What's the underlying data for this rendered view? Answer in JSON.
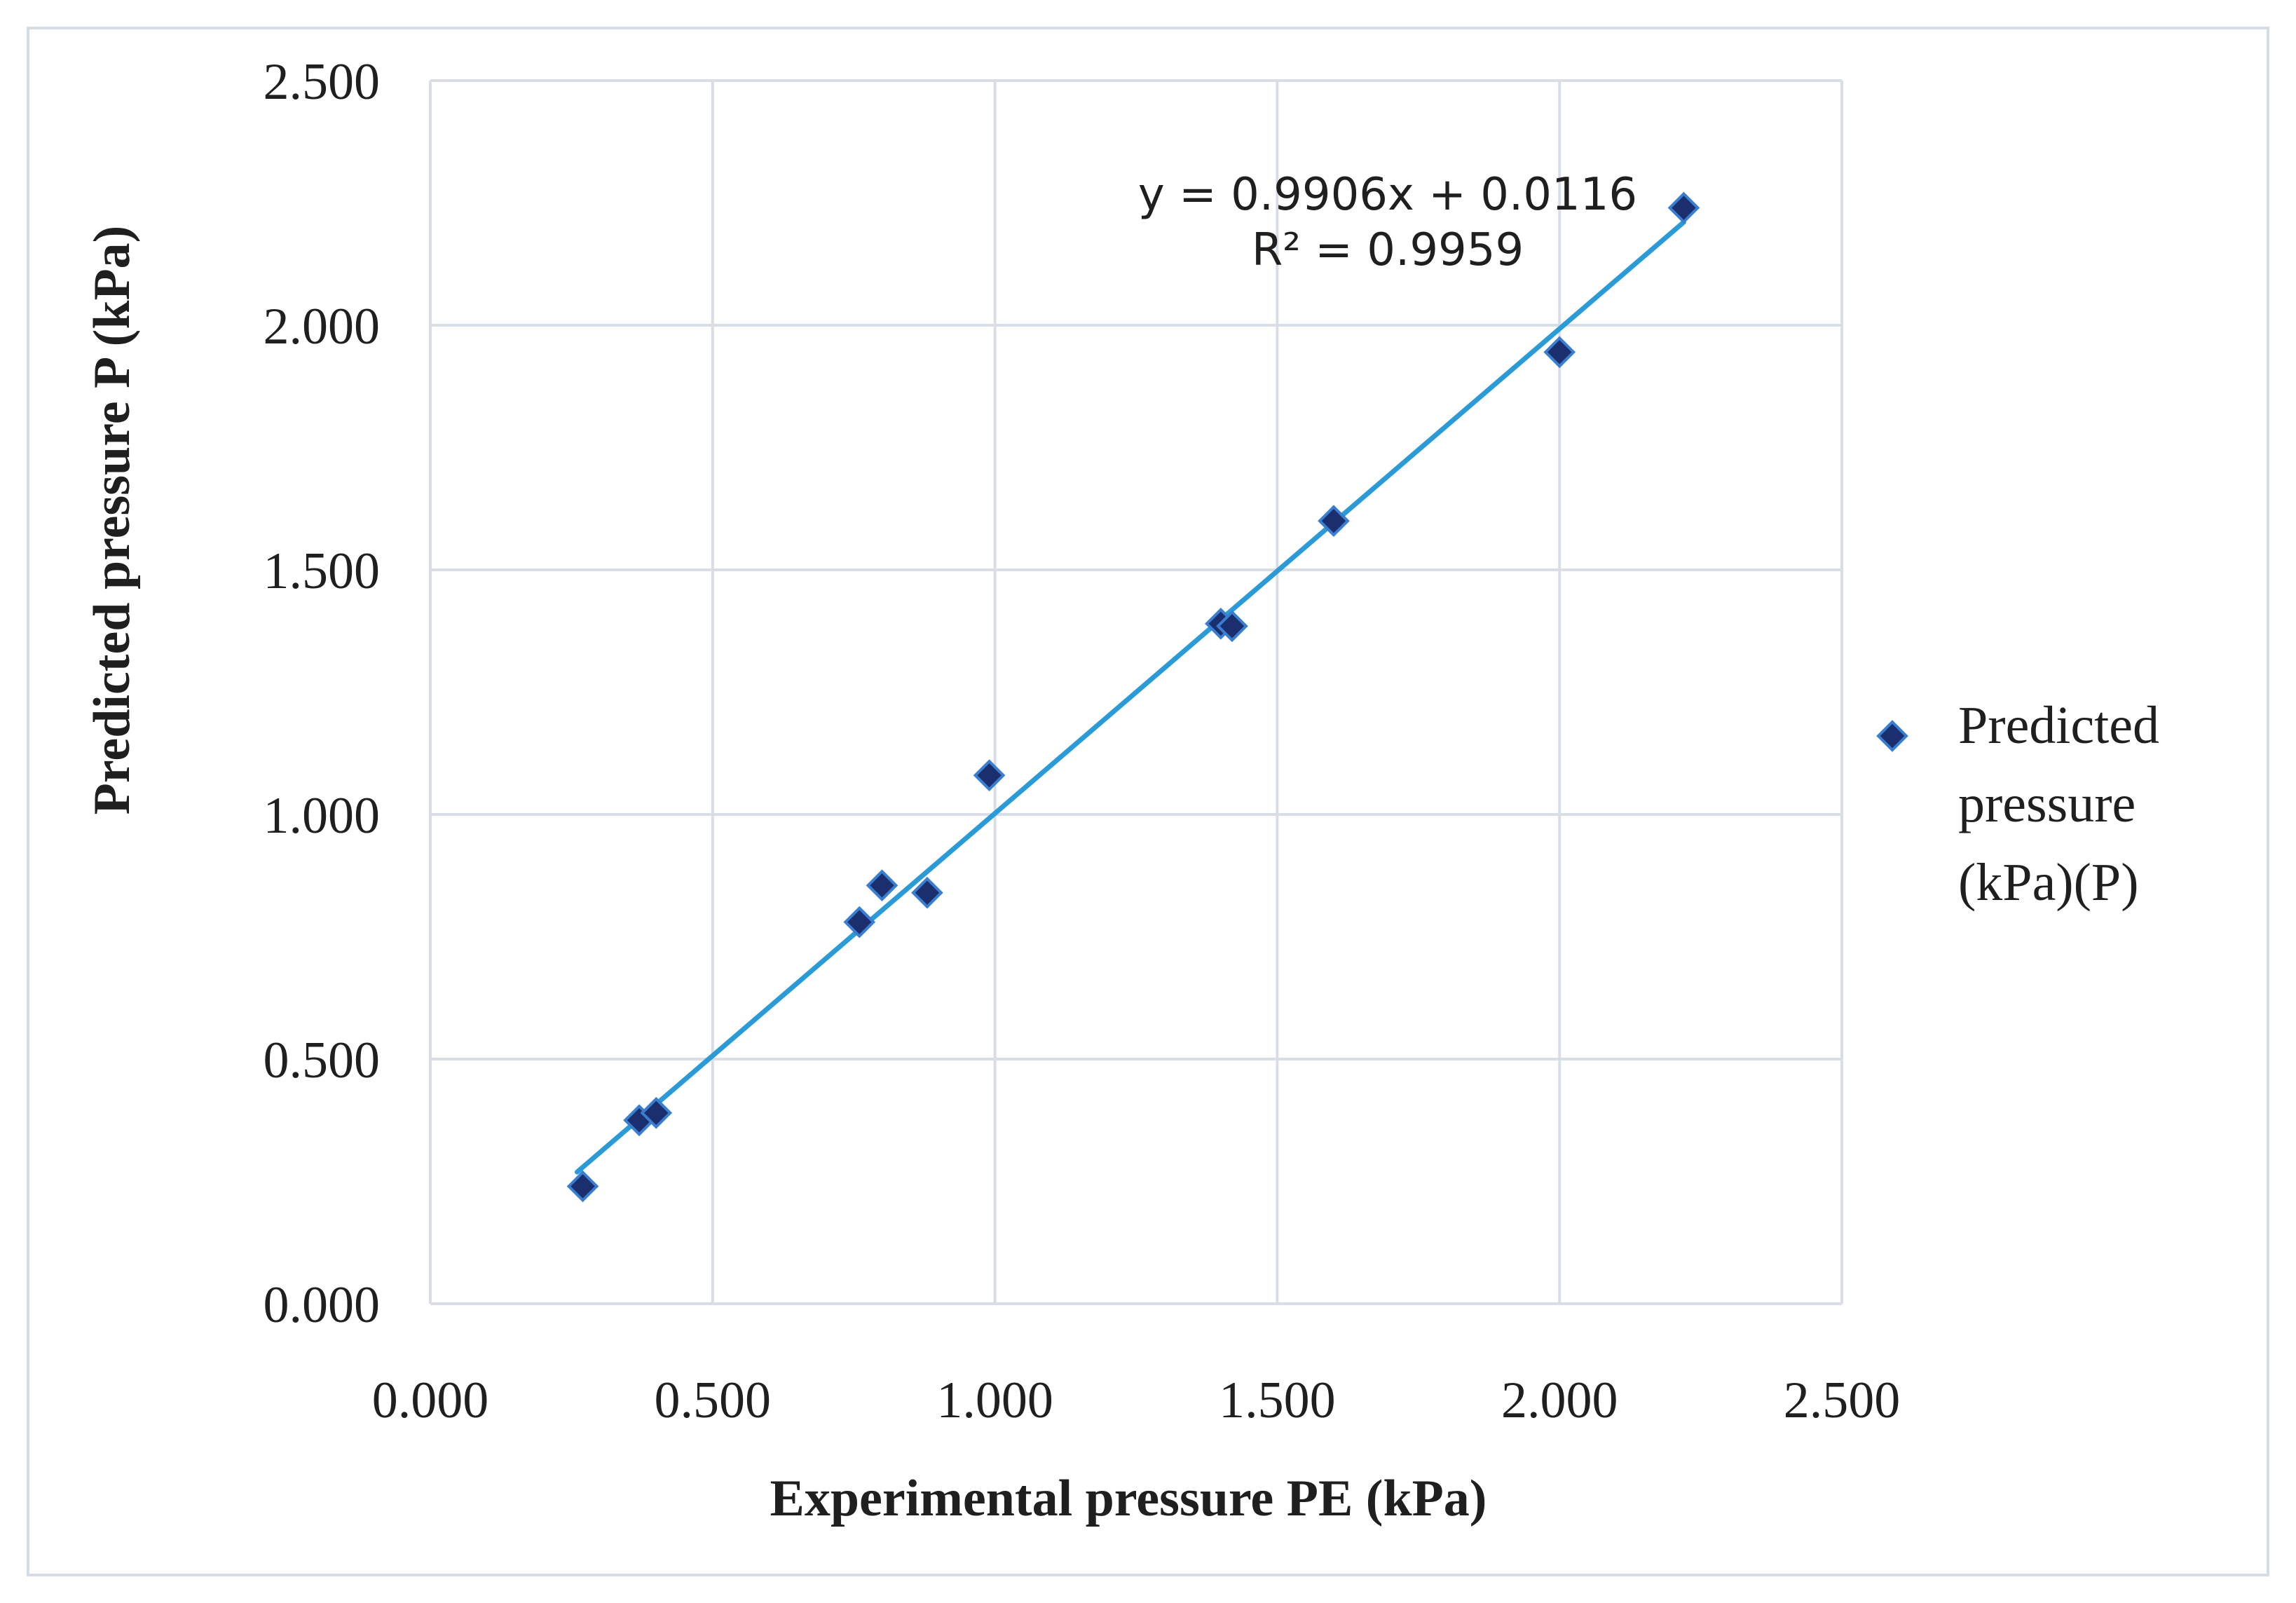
{
  "chart_data": {
    "type": "scatter",
    "title": "",
    "xlabel": "Experimental pressure PE (kPa)",
    "ylabel": "Predicted pressure P (kPa)",
    "xlim": [
      0,
      2.5
    ],
    "ylim": [
      0,
      2.5
    ],
    "xticks": [
      0,
      0.5,
      1,
      1.5,
      2,
      2.5
    ],
    "yticks": [
      0,
      0.5,
      1,
      1.5,
      2,
      2.5
    ],
    "xtick_labels": [
      "0.000",
      "0.500",
      "1.000",
      "1.500",
      "2.000",
      "2.500"
    ],
    "ytick_labels": [
      "0.000",
      "0.500",
      "1.000",
      "1.500",
      "2.000",
      "2.500"
    ],
    "grid": true,
    "legend_position": "right",
    "series": [
      {
        "name": "Predicted pressure (kPa)(P)",
        "marker": "diamond",
        "color": "#1b2f6e",
        "x": [
          0.27,
          0.37,
          0.4,
          0.76,
          0.8,
          0.88,
          0.99,
          1.4,
          1.42,
          1.6,
          2.0,
          2.22
        ],
        "y": [
          0.24,
          0.375,
          0.39,
          0.78,
          0.855,
          0.84,
          1.08,
          1.39,
          1.385,
          1.6,
          1.945,
          2.24
        ]
      }
    ],
    "trendline": {
      "type": "linear",
      "slope": 0.9906,
      "intercept": 0.0116,
      "x_range": [
        0.26,
        2.22
      ],
      "color": "#2a9bd7",
      "equation_label": "y = 0.9906x + 0.0116",
      "r2_label": "R² = 0.9959"
    }
  },
  "legend": {
    "lines": [
      "Predicted",
      "pressure",
      "(kPa)(P)"
    ]
  },
  "colors": {
    "grid": "#d9dee6",
    "marker_fill": "#1b2f6e",
    "marker_stroke": "#3a7ed0",
    "trendline": "#2a9bd7",
    "frame": "#d6dce5"
  }
}
